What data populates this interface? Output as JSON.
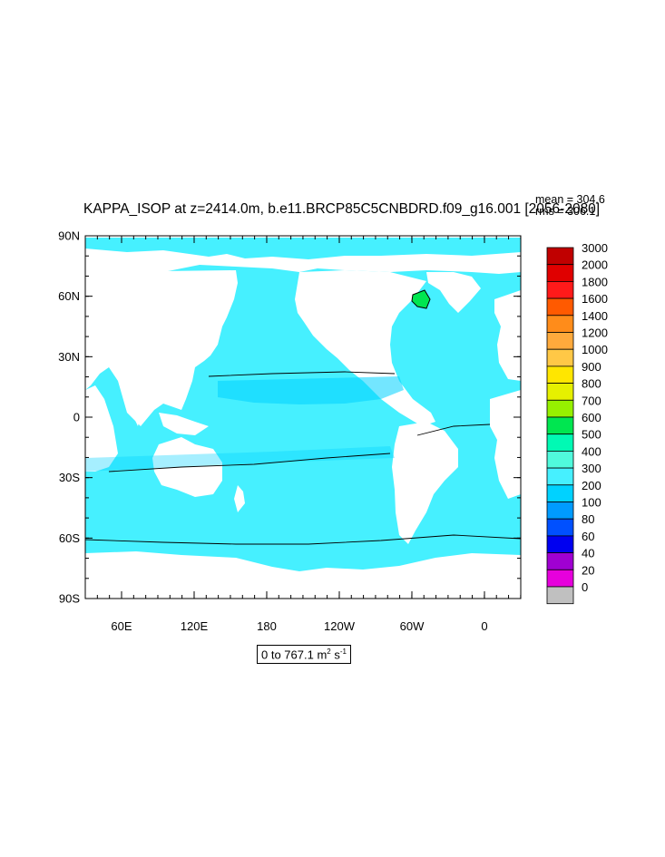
{
  "title": "KAPPA_ISOP at z=2414.0m, b.e11.BRCP85C5CNBDRD.f09_g16.001 [2056-2080]",
  "stats": {
    "mean": "mean = 304.6",
    "rms": "rms = 306.1"
  },
  "range": {
    "text": "0 to 767.1 m",
    "unit_sup": "2",
    "unit_s": " s",
    "unit_s_sup": "-1"
  },
  "map": {
    "lat_labels": [
      "90N",
      "60N",
      "30N",
      "0",
      "30S",
      "60S",
      "90S"
    ],
    "lon_labels": [
      "60E",
      "120E",
      "180",
      "120W",
      "60W",
      "0"
    ]
  },
  "colorbar": {
    "labels": [
      "3000",
      "2000",
      "1800",
      "1600",
      "1400",
      "1200",
      "1000",
      "900",
      "800",
      "700",
      "600",
      "500",
      "400",
      "300",
      "200",
      "100",
      "80",
      "60",
      "40",
      "20",
      "0"
    ],
    "colors": [
      "#c00000",
      "#e00000",
      "#ff1a1a",
      "#ff5a00",
      "#ff8c1a",
      "#ffaa3c",
      "#ffc846",
      "#ffe600",
      "#e6f000",
      "#96f000",
      "#00e650",
      "#00fab4",
      "#50fadc",
      "#46f0ff",
      "#00d2ff",
      "#009bff",
      "#0050ff",
      "#0000f0",
      "#a000d2",
      "#e600dc",
      "#c0c0c0"
    ]
  },
  "colors": {
    "ocean": "#46f0ff",
    "land": "#ffffff",
    "contour": "#000000"
  }
}
